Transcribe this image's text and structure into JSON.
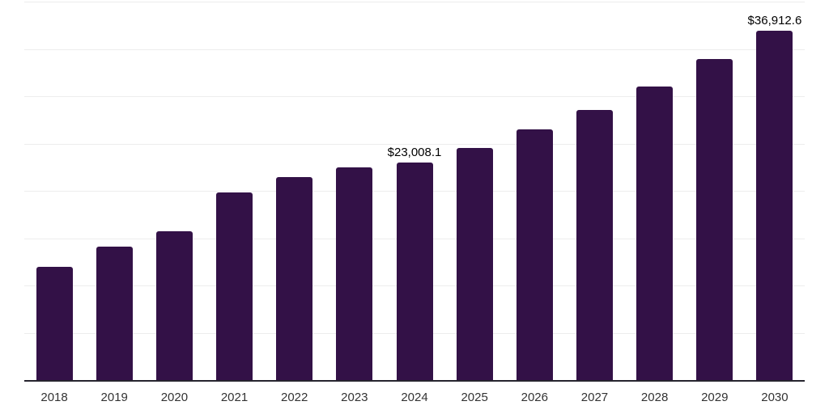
{
  "chart_data": {
    "type": "bar",
    "title": "",
    "xlabel": "",
    "ylabel": "",
    "categories": [
      "2018",
      "2019",
      "2020",
      "2021",
      "2022",
      "2023",
      "2024",
      "2025",
      "2026",
      "2027",
      "2028",
      "2029",
      "2030"
    ],
    "values": [
      12000,
      14100,
      15750,
      19830,
      21450,
      22480,
      23008.1,
      24570,
      26480,
      28560,
      31040,
      33950,
      36912.6
    ],
    "point_labels": [
      null,
      null,
      null,
      null,
      null,
      null,
      "$23,008.1",
      null,
      null,
      null,
      null,
      null,
      "$36,912.6"
    ],
    "ylim": [
      0,
      40000
    ],
    "gridline_step": 5000,
    "grid": "horizontal-only",
    "y_tick_labels_shown": false,
    "legend": "none",
    "bar_color": "#331147",
    "axis_color": "#26242e",
    "gridline_color": "#ededed",
    "x_tick_color": "#333333",
    "point_label_color": "#000000"
  }
}
